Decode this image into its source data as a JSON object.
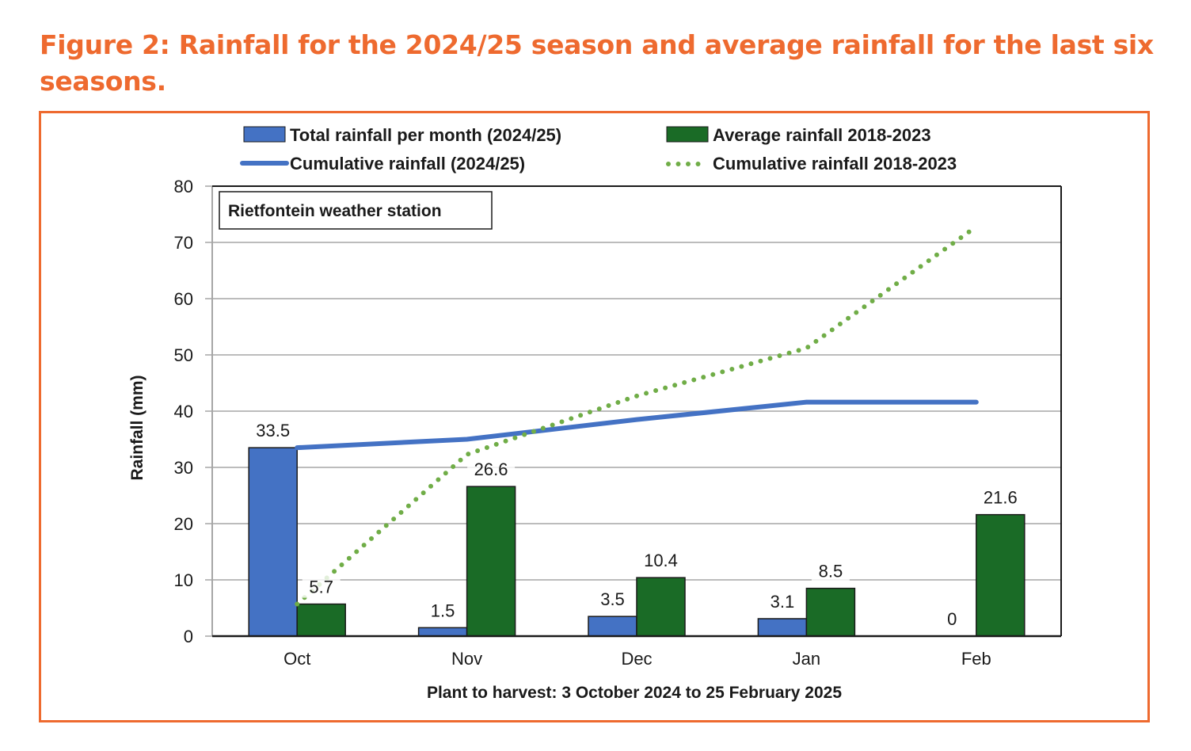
{
  "figure": {
    "title": "Figure 2: Rainfall for the 2024/25 season and average rainfall for the last six seasons.",
    "colors": {
      "accent": "#ee6a2f",
      "bar_2024": "#4472c4",
      "bar_avg": "#1a6b26",
      "line_2024": "#4472c4",
      "line_avg": "#70ad47",
      "grid": "#a6a6a6"
    }
  },
  "chart_data": {
    "type": "bar",
    "title": "",
    "annotation": "Rietfontein weather station",
    "categories": [
      "Oct",
      "Nov",
      "Dec",
      "Jan",
      "Feb"
    ],
    "xlabel": "Plant to harvest: 3 October 2024 to 25 February 2025",
    "ylabel": "Rainfall (mm)",
    "ylim": [
      0,
      80
    ],
    "yticks": [
      0,
      10,
      20,
      30,
      40,
      50,
      60,
      70,
      80
    ],
    "grid": true,
    "legend_position": "top",
    "series": [
      {
        "name": "Total rainfall per month (2024/25)",
        "kind": "bar",
        "values": [
          33.5,
          1.5,
          3.5,
          3.1,
          0
        ],
        "labels": [
          "33.5",
          "1.5",
          "3.5",
          "3.1",
          "0"
        ]
      },
      {
        "name": "Average rainfall 2018-2023",
        "kind": "bar",
        "values": [
          5.7,
          26.6,
          10.4,
          8.5,
          21.6
        ],
        "labels": [
          "5.7",
          "26.6",
          "10.4",
          "8.5",
          "21.6"
        ]
      },
      {
        "name": "Cumulative rainfall (2024/25)",
        "kind": "line",
        "style": "solid",
        "values": [
          33.5,
          35.0,
          38.5,
          41.6,
          41.6
        ]
      },
      {
        "name": "Cumulative rainfall 2018-2023",
        "kind": "line",
        "style": "dotted",
        "values": [
          5.7,
          32.3,
          42.7,
          51.2,
          72.8
        ]
      }
    ]
  }
}
